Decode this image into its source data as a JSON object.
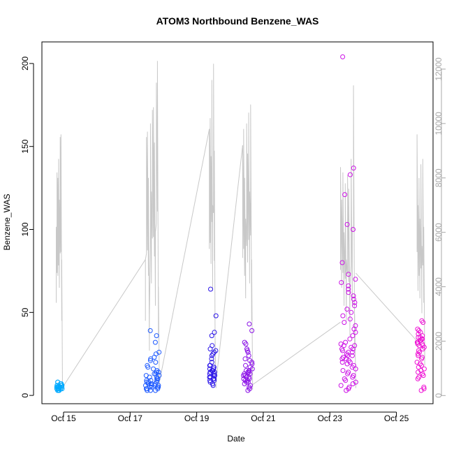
{
  "chart_data": {
    "type": "scatter",
    "title": "ATOM3 Northbound Benzene_WAS",
    "xlabel": "Date",
    "ylabel": "Benzene_WAS",
    "y_ticks": [
      "0",
      "50",
      "100",
      "150",
      "200"
    ],
    "y_right_ticks": [
      "0",
      "2000",
      "4000",
      "6000",
      "8000",
      "10000",
      "12000"
    ],
    "x_ticks": [
      "Oct 15",
      "Oct 17",
      "Oct 19",
      "Oct 21",
      "Oct 23",
      "Oct 25"
    ],
    "x_domain_days": [
      14.35,
      26.1
    ],
    "ylim": [
      -5,
      213
    ],
    "y2lim": [
      -300,
      13000
    ],
    "grid": false,
    "legend": "none",
    "colors": {
      "background_line": "#c8c8c8",
      "right_axis": "#a8a8a8",
      "clusters": [
        "#00aaff",
        "#1e5aff",
        "#2a14e8",
        "#8a10e6",
        "#cc12e6",
        "#ee12d4"
      ]
    },
    "secondary_series_segments": [
      {
        "x_start": 14.78,
        "x_end": 14.97,
        "max_values": [
          6200,
          8200,
          8000,
          8700,
          7200,
          9500,
          9600,
          5000,
          300
        ]
      },
      {
        "x_start": 17.46,
        "x_end": 17.88,
        "max_values": [
          5000,
          9500,
          9700,
          8000,
          3000,
          10000,
          7500,
          10500,
          10600,
          9300,
          6000,
          11500,
          12300,
          4000,
          500
        ]
      },
      {
        "x_start": 19.38,
        "x_end": 19.58,
        "max_values": [
          9800,
          10200,
          8800,
          11600,
          7000,
          12200,
          9000,
          2000,
          500
        ]
      },
      {
        "x_start": 20.38,
        "x_end": 20.68,
        "max_values": [
          9200,
          9800,
          8000,
          6500,
          10000,
          8900,
          10400,
          7500,
          10700,
          5000,
          400
        ]
      },
      {
        "x_start": 23.32,
        "x_end": 23.78,
        "max_values": [
          8400,
          7200,
          8200,
          6000,
          7800,
          5000,
          8100,
          7600,
          4000,
          8700,
          6000,
          11400,
          3000,
          500
        ]
      },
      {
        "x_start": 25.62,
        "x_end": 25.85,
        "max_values": [
          9600,
          7000,
          8000,
          6500,
          8500,
          5500,
          8700,
          6200,
          2000
        ]
      }
    ],
    "secondary_series_connectors": [
      {
        "x": [
          14.97,
          17.46
        ],
        "y": [
          300,
          5000
        ]
      },
      {
        "x": [
          17.88,
          19.38
        ],
        "y": [
          500,
          9800
        ]
      },
      {
        "x": [
          19.58,
          20.38
        ],
        "y": [
          500,
          9200
        ]
      },
      {
        "x": [
          20.68,
          23.32
        ],
        "y": [
          400,
          2700
        ]
      },
      {
        "x": [
          23.78,
          25.62
        ],
        "y": [
          4500,
          2000
        ]
      }
    ],
    "point_clusters": [
      {
        "color_index": 0,
        "x_start": 14.78,
        "x_end": 14.97,
        "y_values": [
          8,
          6,
          5,
          4,
          3,
          5,
          7,
          6,
          5,
          4,
          6,
          8,
          5,
          3,
          4,
          6,
          5,
          7,
          4,
          5,
          6,
          3,
          5,
          4
        ]
      },
      {
        "color_index": 1,
        "x_start": 17.46,
        "x_end": 17.88,
        "y_values": [
          3,
          4,
          5,
          6,
          7,
          8,
          9,
          10,
          11,
          12,
          13,
          14,
          15,
          16,
          17,
          18,
          20,
          21,
          22,
          23,
          25,
          26,
          32,
          36,
          39,
          3,
          4,
          5,
          6,
          7,
          8,
          9,
          10,
          11,
          12,
          13,
          14,
          3,
          4,
          5,
          6,
          7,
          8,
          9,
          5,
          6,
          7
        ]
      },
      {
        "color_index": 2,
        "x_start": 19.38,
        "x_end": 19.58,
        "y_values": [
          64,
          48,
          38,
          36,
          30,
          28,
          27,
          26,
          25,
          24,
          22,
          20,
          18,
          17,
          16,
          15,
          14,
          13,
          12,
          11,
          10,
          9,
          8,
          7,
          6,
          15,
          14,
          13,
          12,
          11,
          10,
          9,
          16,
          17,
          18
        ]
      },
      {
        "color_index": 3,
        "x_start": 20.38,
        "x_end": 20.68,
        "y_values": [
          43,
          39,
          32,
          31,
          28,
          27,
          26,
          24,
          22,
          21,
          20,
          19,
          18,
          17,
          16,
          15,
          14,
          13,
          12,
          11,
          10,
          9,
          8,
          7,
          6,
          5,
          4,
          3,
          15,
          14,
          13,
          12,
          11,
          10,
          9,
          8
        ]
      },
      {
        "color_index": 4,
        "x_start": 23.32,
        "x_end": 23.78,
        "y_values": [
          204,
          137,
          133,
          121,
          103,
          100,
          80,
          73,
          70,
          68,
          66,
          64,
          62,
          60,
          58,
          56,
          54,
          52,
          50,
          48,
          46,
          44,
          42,
          40,
          38,
          36,
          34,
          32,
          31,
          30,
          29,
          28,
          27,
          26,
          25,
          24,
          23,
          22,
          21,
          20,
          19,
          18,
          17,
          16,
          15,
          14,
          13,
          12,
          11,
          10,
          9,
          8,
          7,
          6,
          5,
          4,
          3,
          30,
          28,
          26,
          24,
          22,
          20
        ]
      },
      {
        "color_index": 5,
        "x_start": 25.62,
        "x_end": 25.85,
        "y_values": [
          45,
          44,
          40,
          39,
          38,
          37,
          36,
          35,
          34,
          33,
          32,
          31,
          30,
          29,
          28,
          27,
          26,
          25,
          24,
          23,
          22,
          20,
          19,
          18,
          17,
          16,
          15,
          14,
          13,
          12,
          11,
          10,
          5,
          4,
          3,
          35,
          34,
          33,
          32,
          31,
          30
        ]
      }
    ]
  }
}
